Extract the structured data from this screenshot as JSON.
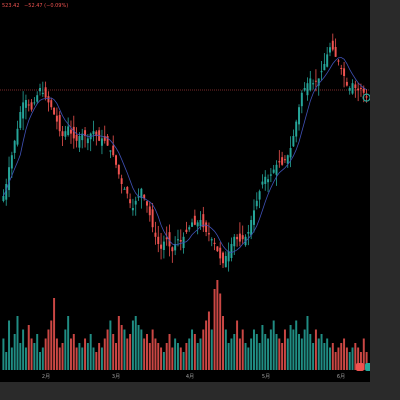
{
  "header": {
    "price_text": "523.42",
    "change_text": "−52.47 (−0.09%)"
  },
  "x_axis": {
    "labels": [
      "2月",
      "3月",
      "4月",
      "5月",
      "6月"
    ]
  },
  "volume_badge": {
    "left_text": "",
    "right_text": ""
  },
  "colors": {
    "up": "#26a69a",
    "down": "#ef5350",
    "ma_line": "#3f51b5",
    "price_line": "#ef5350",
    "background": "#000000",
    "frame": "#2a2a2a",
    "axis_text": "#9e9e9e"
  },
  "chart_data": {
    "type": "candlestick",
    "x_ticks": [
      "2月",
      "3月",
      "4月",
      "5月",
      "6月"
    ],
    "close_series": [
      0.35,
      0.4,
      0.47,
      0.52,
      0.58,
      0.63,
      0.7,
      0.74,
      0.75,
      0.73,
      0.71,
      0.74,
      0.77,
      0.8,
      0.78,
      0.76,
      0.74,
      0.72,
      0.69,
      0.66,
      0.62,
      0.6,
      0.62,
      0.64,
      0.61,
      0.59,
      0.58,
      0.6,
      0.61,
      0.6,
      0.59,
      0.61,
      0.62,
      0.6,
      0.58,
      0.59,
      0.58,
      0.56,
      0.54,
      0.52,
      0.48,
      0.44,
      0.4,
      0.38,
      0.36,
      0.32,
      0.3,
      0.33,
      0.35,
      0.38,
      0.34,
      0.31,
      0.27,
      0.22,
      0.18,
      0.15,
      0.13,
      0.16,
      0.17,
      0.14,
      0.12,
      0.15,
      0.17,
      0.16,
      0.18,
      0.2,
      0.22,
      0.24,
      0.23,
      0.24,
      0.25,
      0.22,
      0.2,
      0.19,
      0.17,
      0.15,
      0.12,
      0.09,
      0.07,
      0.1,
      0.12,
      0.15,
      0.18,
      0.17,
      0.16,
      0.17,
      0.18,
      0.2,
      0.25,
      0.29,
      0.33,
      0.37,
      0.41,
      0.43,
      0.42,
      0.44,
      0.46,
      0.48,
      0.49,
      0.48,
      0.5,
      0.52,
      0.55,
      0.6,
      0.66,
      0.72,
      0.78,
      0.8,
      0.82,
      0.84,
      0.82,
      0.83,
      0.84,
      0.87,
      0.9,
      0.94,
      0.97,
      0.96,
      0.93,
      0.91,
      0.88,
      0.85,
      0.81,
      0.8,
      0.82,
      0.8,
      0.79,
      0.8,
      0.78,
      0.76
    ],
    "volume_series": [
      0.35,
      0.2,
      0.55,
      0.25,
      0.4,
      0.6,
      0.3,
      0.45,
      0.25,
      0.5,
      0.35,
      0.3,
      0.4,
      0.2,
      0.25,
      0.35,
      0.45,
      0.55,
      0.8,
      0.35,
      0.25,
      0.3,
      0.45,
      0.6,
      0.35,
      0.4,
      0.25,
      0.3,
      0.25,
      0.35,
      0.3,
      0.4,
      0.25,
      0.2,
      0.3,
      0.25,
      0.35,
      0.45,
      0.55,
      0.4,
      0.3,
      0.6,
      0.5,
      0.45,
      0.35,
      0.4,
      0.55,
      0.6,
      0.5,
      0.45,
      0.35,
      0.4,
      0.3,
      0.45,
      0.35,
      0.3,
      0.25,
      0.2,
      0.3,
      0.4,
      0.25,
      0.35,
      0.3,
      0.25,
      0.2,
      0.3,
      0.35,
      0.45,
      0.4,
      0.3,
      0.35,
      0.45,
      0.55,
      0.65,
      0.45,
      0.9,
      1.0,
      0.85,
      0.6,
      0.45,
      0.3,
      0.35,
      0.4,
      0.55,
      0.35,
      0.45,
      0.3,
      0.25,
      0.35,
      0.45,
      0.4,
      0.3,
      0.5,
      0.4,
      0.35,
      0.45,
      0.55,
      0.4,
      0.35,
      0.3,
      0.45,
      0.35,
      0.5,
      0.45,
      0.55,
      0.4,
      0.35,
      0.45,
      0.6,
      0.4,
      0.3,
      0.45,
      0.35,
      0.4,
      0.3,
      0.35,
      0.25,
      0.3,
      0.2,
      0.25,
      0.3,
      0.35,
      0.25,
      0.2,
      0.25,
      0.3,
      0.25,
      0.2
    ]
  }
}
